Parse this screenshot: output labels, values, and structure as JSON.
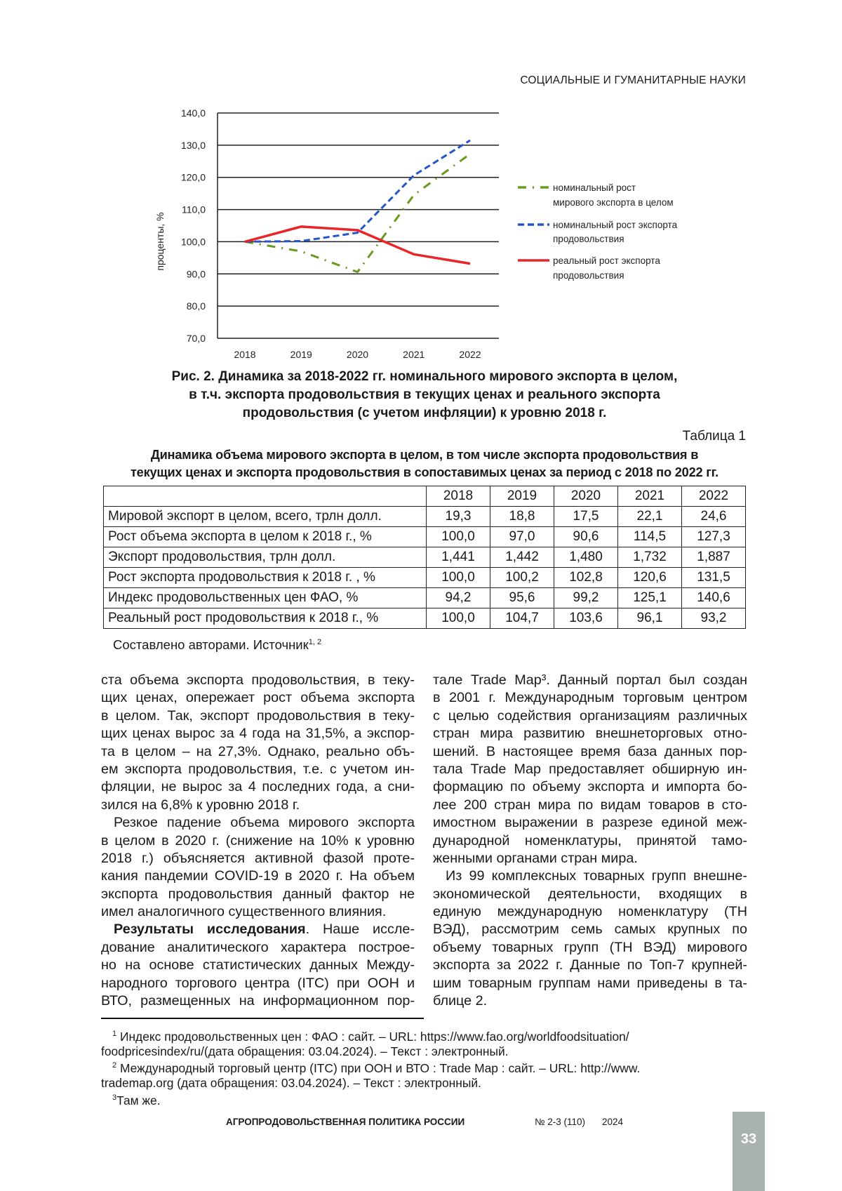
{
  "header": {
    "section": "СОЦИАЛЬНЫЕ И ГУМАНИТАРНЫЕ НАУКИ"
  },
  "chart_data": {
    "type": "line",
    "categories": [
      "2018",
      "2019",
      "2020",
      "2021",
      "2022"
    ],
    "ylabel": "проценты, %",
    "ylim": [
      70,
      140
    ],
    "yticks": [
      "70,0",
      "80,0",
      "90,0",
      "100,0",
      "110,0",
      "120,0",
      "130,0",
      "140,0"
    ],
    "grid": true,
    "legend_position": "right",
    "series": [
      {
        "name": "номинальный рост мирового экспорта в целом",
        "legend_lines": [
          "номинальный рост",
          "мирового экспорта в целом"
        ],
        "values": [
          100.0,
          97.0,
          90.6,
          114.5,
          127.3
        ],
        "color": "#6a9a1f",
        "style": "dash-dot"
      },
      {
        "name": "номинальный рост экспорта продовольствия",
        "legend_lines": [
          "номинальный рост экспорта",
          "продовольствия"
        ],
        "values": [
          100.0,
          100.2,
          102.8,
          120.6,
          131.5
        ],
        "color": "#2456c8",
        "style": "dashed"
      },
      {
        "name": "реальный рост экспорта продовольствия",
        "legend_lines": [
          "реальный рост экспорта",
          "продовольствия"
        ],
        "values": [
          100.0,
          104.7,
          103.6,
          96.1,
          93.2
        ],
        "color": "#e8262a",
        "style": "solid"
      }
    ]
  },
  "figure": {
    "caption_lines": [
      "Рис. 2. Динамика за 2018-2022 гг. номинального мирового экспорта в целом,",
      "в т.ч. экспорта продовольствия в текущих ценах и реального экспорта",
      "продовольствия (с учетом инфляции) к уровню 2018 г."
    ]
  },
  "table": {
    "label": "Таблица 1",
    "title_lines": [
      "Динамика объема мирового экспорта в целом, в том числе экспорта продовольствия в",
      "текущих ценах и экспорта продовольствия в сопоставимых ценах за период с 2018 по 2022 гг."
    ],
    "headers": [
      "",
      "2018",
      "2019",
      "2020",
      "2021",
      "2022"
    ],
    "rows": [
      [
        "Мировой экспорт в целом, всего, трлн долл.",
        "19,3",
        "18,8",
        "17,5",
        "22,1",
        "24,6"
      ],
      [
        "Рост объема экспорта в целом к 2018 г., %",
        "100,0",
        "97,0",
        "90,6",
        "114,5",
        "127,3"
      ],
      [
        "Экспорт продовольствия, трлн долл.",
        "1,441",
        "1,442",
        "1,480",
        "1,732",
        "1,887"
      ],
      [
        "Рост экспорта продовольствия к 2018 г. , %",
        "100,0",
        "100,2",
        "102,8",
        "120,6",
        "131,5"
      ],
      [
        "Индекс продовольственных цен ФАО, %",
        "94,2",
        "95,6",
        "99,2",
        "125,1",
        "140,6"
      ],
      [
        "Реальный рост продовольствия к 2018 г., %",
        "100,0",
        "104,7",
        "103,6",
        "96,1",
        "93,2"
      ]
    ],
    "source": "Составлено авторами. Источник",
    "source_refs": "1, 2"
  },
  "body": {
    "left": [
      {
        "text": "ста объема экспорта продовольствия, в теку-"
      },
      {
        "text": "щих ценах, опережает рост объема экспорта"
      },
      {
        "text": "в целом. Так, экспорт продовольствия в теку-"
      },
      {
        "text": "щих ценах вырос за 4 года на 31,5%, а экспор-"
      },
      {
        "text": "та в целом – на 27,3%. Однако, реально объ-"
      },
      {
        "text": "ем экспорта продовольствия, т.е. с учетом ин-"
      },
      {
        "text": "фляции, не вырос за 4 последних года, а сни-"
      },
      {
        "text": "зился на 6,8% к уровню 2018 г.",
        "last": true
      },
      {
        "text": "Резкое падение объема мирового экспорта",
        "indent": true
      },
      {
        "text": "в целом в 2020 г. (снижение на 10% к уровню"
      },
      {
        "text": "2018 г.) объясняется активной фазой проте-"
      },
      {
        "text": "кания пандемии COVID-19 в 2020 г. На объем"
      },
      {
        "text": "экспорта продовольствия данный фактор не"
      },
      {
        "text": "имел аналогичного существенного влияния.",
        "last": true
      },
      {
        "bold": "Результаты исследования",
        "text": ". Наше иссле-",
        "indent": true
      },
      {
        "text": "дование аналитического характера построе-"
      },
      {
        "text": "но на основе статистических данных Между-"
      },
      {
        "text": "народного торгового центра (ITC) при ООН и"
      },
      {
        "text": "ВТО, размещенных на информационном пор-"
      }
    ],
    "right": [
      {
        "text": "тале Trade Map³. Данный портал был создан"
      },
      {
        "text": "в 2001 г. Международным торговым центром"
      },
      {
        "text": "с целью содействия организациям различных"
      },
      {
        "text": "стран мира развитию внешнеторговых отно-"
      },
      {
        "text": "шений. В настоящее время база данных пор-"
      },
      {
        "text": "тала Trade Map предоставляет обширную ин-"
      },
      {
        "text": "формацию по объему экспорта и импорта бо-"
      },
      {
        "text": "лее 200 стран мира по видам товаров в сто-"
      },
      {
        "text": "имостном выражении в разрезе единой меж-"
      },
      {
        "text": "дународной номенклатуры, принятой тамо-"
      },
      {
        "text": "женными органами стран мира.",
        "last": true
      },
      {
        "text": "Из 99 комплексных товарных групп внешне-",
        "indent": true
      },
      {
        "text": "экономической деятельности, входящих в"
      },
      {
        "text": "единую международную номенклатуру (ТН"
      },
      {
        "text": "ВЭД), рассмотрим семь самых крупных по"
      },
      {
        "text": "объему товарных групп (ТН ВЭД) мирового"
      },
      {
        "text": "экспорта за 2022 г. Данные по Топ-7 крупней-"
      },
      {
        "text": "шим товарным группам нами приведены в та-"
      },
      {
        "text": "блице 2.",
        "last": true
      }
    ]
  },
  "footnotes": [
    {
      "sup": "1",
      "text": " Индекс продовольственных цен : ФАО : сайт. – URL: https://www.fao.org/worldfoodsituation/",
      "indent": true
    },
    {
      "text": "foodpricesindex/ru/(дата обращения: 03.04.2024). – Текст : электронный."
    },
    {
      "sup": "2",
      "text": " Международный торговый центр (ITC) при ООН и ВТО : Trade Map : сайт. – URL: http://www.",
      "indent": true
    },
    {
      "text": "trademap.org (дата обращения: 03.04.2024). – Текст : электронный."
    },
    {
      "sup": "3",
      "text": "Там же.",
      "indent": true
    }
  ],
  "footer": {
    "journal": "АГРОПРОДОВОЛЬСТВЕННАЯ ПОЛИТИКА РОССИИ",
    "issue": "№ 2-3 (110)",
    "year": "2024",
    "page": "33",
    "page_box_color": "#a8b3ae"
  }
}
